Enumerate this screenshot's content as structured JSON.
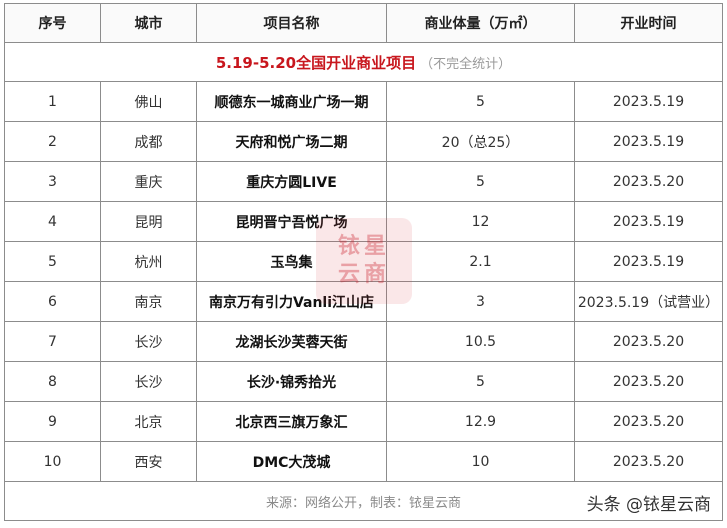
{
  "title": {
    "main": "5.19-5.20全国开业商业项目",
    "sub": "（不完全统计）"
  },
  "headers": [
    "序号",
    "城市",
    "项目名称",
    "商业体量（万㎡）",
    "开业时间"
  ],
  "rows": [
    [
      "1",
      "佛山",
      "顺德东一城商业广场一期",
      "5",
      "2023.5.19"
    ],
    [
      "2",
      "成都",
      "天府和悦广场二期",
      "20（总25）",
      "2023.5.19"
    ],
    [
      "3",
      "重庆",
      "重庆方圆LIVE",
      "5",
      "2023.5.20"
    ],
    [
      "4",
      "昆明",
      "昆明晋宁吾悦广场",
      "12",
      "2023.5.19"
    ],
    [
      "5",
      "杭州",
      "玉鸟集",
      "2.1",
      "2023.5.19"
    ],
    [
      "6",
      "南京",
      "南京万有引力Vanli江山店",
      "3",
      "2023.5.19（试营业）"
    ],
    [
      "7",
      "长沙",
      "龙湖长沙芙蓉天街",
      "10.5",
      "2023.5.20"
    ],
    [
      "8",
      "长沙",
      "长沙·锦秀拾光",
      "5",
      "2023.5.20"
    ],
    [
      "9",
      "北京",
      "北京西三旗万象汇",
      "12.9",
      "2023.5.20"
    ],
    [
      "10",
      "西安",
      "DMC大茂城",
      "10",
      "2023.5.20"
    ]
  ],
  "footer": "来源：网络公开，制表：铱星云商",
  "watermark": {
    "line1": "铱星",
    "line2": "云商"
  },
  "credit": "头条 @铱星云商"
}
